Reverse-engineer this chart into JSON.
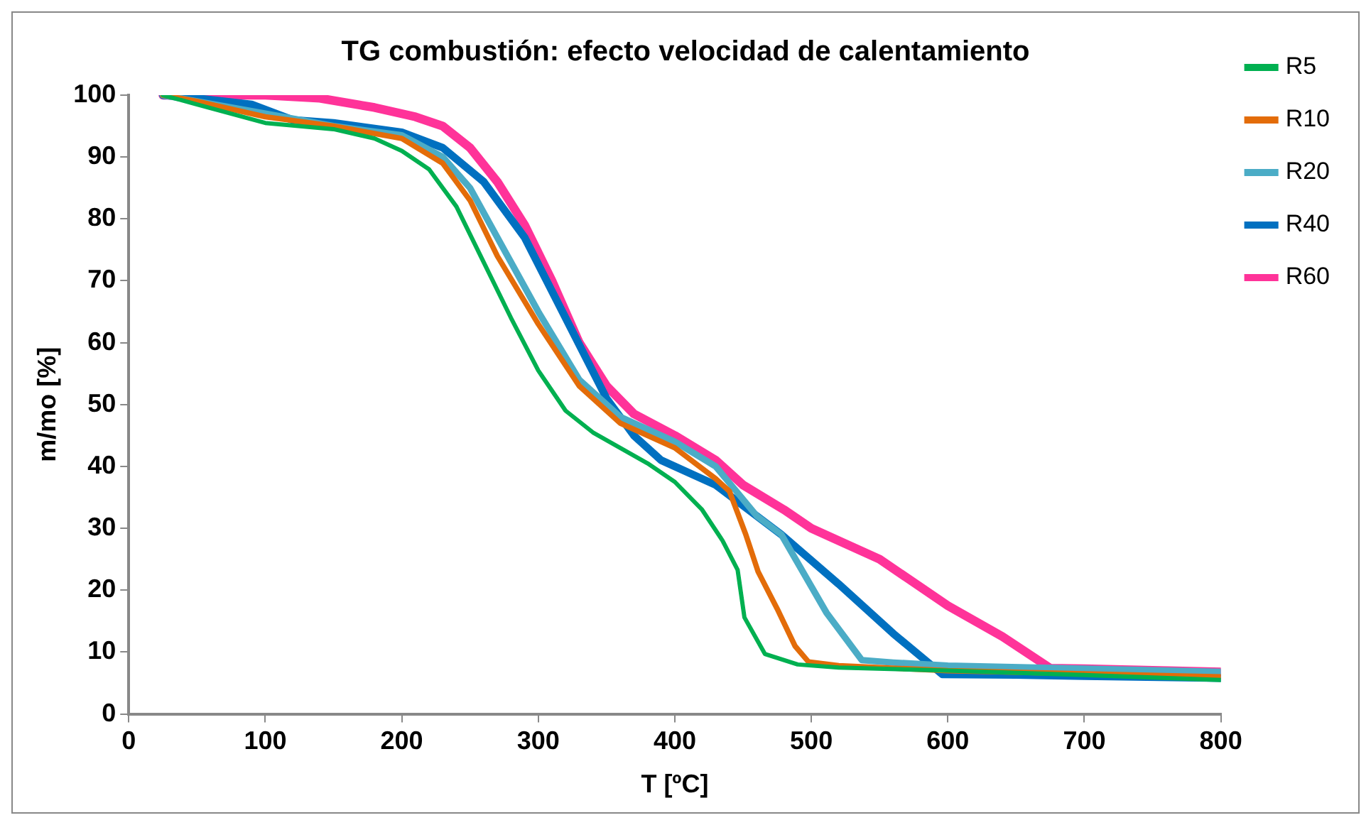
{
  "chart_data": {
    "type": "line",
    "title": "TG combustión: efecto velocidad de calentamiento",
    "xlabel": "T [ºC]",
    "ylabel": "m/mo [%]",
    "xlim": [
      0,
      800
    ],
    "xticks": [
      0,
      100,
      200,
      300,
      400,
      500,
      600,
      700,
      800
    ],
    "ylim": [
      0,
      100
    ],
    "yticks": [
      0,
      10,
      20,
      30,
      40,
      50,
      60,
      70,
      80,
      90,
      100
    ],
    "grid": false,
    "legend": "right",
    "marker": "none",
    "line_style": "solid",
    "series": [
      {
        "name": "R5",
        "color": "#00b050",
        "x": [
          25,
          50,
          75,
          100,
          150,
          180,
          200,
          220,
          240,
          260,
          280,
          300,
          320,
          340,
          360,
          380,
          400,
          420,
          435,
          446,
          451,
          466,
          490,
          520,
          600,
          700,
          800
        ],
        "values": [
          100,
          98.5,
          97,
          95.5,
          94.5,
          93,
          91,
          88,
          82,
          73,
          64,
          55.5,
          49,
          45.5,
          43,
          40.5,
          37.5,
          33,
          28,
          23.3,
          15.6,
          9.7,
          8,
          7.5,
          7,
          6.3,
          5.5
        ]
      },
      {
        "name": "R10",
        "color": "#e36c09",
        "x": [
          25,
          50,
          100,
          150,
          200,
          230,
          250,
          270,
          300,
          330,
          360,
          400,
          430,
          440,
          452,
          461,
          475,
          488,
          498,
          520,
          600,
          700,
          800
        ],
        "values": [
          100,
          99,
          96.5,
          95,
          93,
          89,
          83,
          74,
          63,
          53,
          47,
          43,
          38,
          36,
          29,
          23,
          17,
          11,
          8.4,
          7.8,
          7,
          6.5,
          6
        ]
      },
      {
        "name": "R20",
        "color": "#4bacc6",
        "x": [
          25,
          50,
          100,
          150,
          200,
          230,
          250,
          270,
          300,
          330,
          360,
          400,
          430,
          460,
          478,
          511,
          537,
          560,
          600,
          700,
          800
        ],
        "values": [
          100,
          99,
          97,
          95,
          93.5,
          90,
          85,
          77,
          65,
          54,
          48,
          44,
          40,
          32,
          29,
          16.4,
          8.7,
          8.3,
          7.8,
          7.3,
          6.8
        ]
      },
      {
        "name": "R40",
        "color": "#0070c0",
        "x": [
          25,
          50,
          90,
          120,
          150,
          200,
          230,
          260,
          290,
          320,
          350,
          370,
          390,
          430,
          478,
          520,
          560,
          596,
          650,
          700,
          800
        ],
        "values": [
          100,
          99.5,
          98.5,
          96,
          95.5,
          94,
          91.5,
          86,
          77,
          64,
          51,
          45,
          41,
          37,
          29,
          21,
          13,
          6.4,
          6.3,
          6.1,
          5.8
        ]
      },
      {
        "name": "R60",
        "color": "#ff3399",
        "x": [
          25,
          100,
          140,
          180,
          210,
          230,
          250,
          270,
          290,
          310,
          330,
          350,
          370,
          400,
          430,
          450,
          480,
          500,
          550,
          600,
          640,
          675,
          700,
          800
        ],
        "values": [
          100,
          100,
          99.5,
          98,
          96.5,
          95,
          91.5,
          86,
          79,
          70,
          60,
          53,
          48.5,
          45,
          41,
          37,
          33,
          30,
          25,
          17.5,
          12.5,
          7.4,
          7.3,
          6.8
        ]
      }
    ]
  }
}
